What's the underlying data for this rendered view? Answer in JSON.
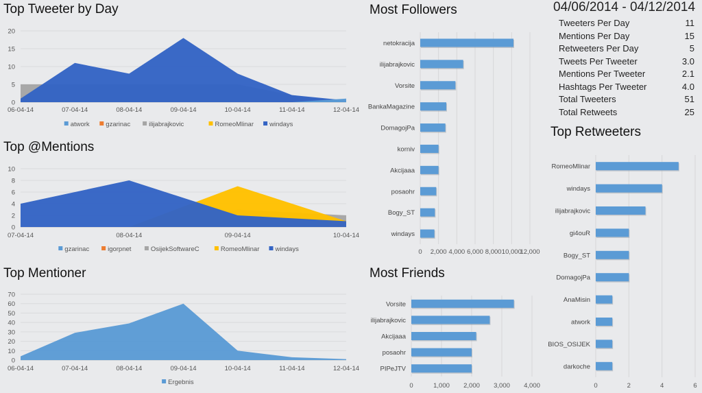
{
  "date_range": "04/06/2014 - 04/12/2014",
  "stats": [
    {
      "label": "Tweeters Per Day",
      "value": "11"
    },
    {
      "label": "Mentions Per Day",
      "value": "15"
    },
    {
      "label": "Retweeters Per Day",
      "value": "5"
    },
    {
      "label": "Tweets Per Tweeter",
      "value": "3.0"
    },
    {
      "label": "Mentions Per Tweeter",
      "value": "2.1"
    },
    {
      "label": "Hashtags Per Tweeter",
      "value": "4.0"
    },
    {
      "label": "Total Tweeters",
      "value": "51"
    },
    {
      "label": "Total Retweets",
      "value": "25"
    }
  ],
  "chart_data": [
    {
      "id": "tweeter",
      "type": "area",
      "title": "Top Tweeter by Day",
      "categories": [
        "06-04-14",
        "07-04-14",
        "08-04-14",
        "09-04-14",
        "10-04-14",
        "11-04-14",
        "12-04-14"
      ],
      "ylim": [
        0,
        20
      ],
      "yticks": [
        0,
        5,
        10,
        15,
        20
      ],
      "grid": true,
      "legend_position": "bottom",
      "series": [
        {
          "name": "atwork",
          "color": "#5b9bd5",
          "values": [
            0,
            0,
            0,
            0,
            0,
            0,
            1
          ]
        },
        {
          "name": "gzarinac",
          "color": "#ed7d31",
          "values": [
            0,
            0,
            0,
            0,
            0,
            0,
            0
          ]
        },
        {
          "name": "ilijabrajkovic",
          "color": "#a5a5a5",
          "values": [
            5,
            5,
            5,
            5,
            5,
            2,
            0
          ]
        },
        {
          "name": "RomeoMlinar",
          "color": "#ffc000",
          "values": [
            0,
            0,
            0,
            0,
            0,
            0,
            0
          ]
        },
        {
          "name": "windays",
          "color": "#3464c4",
          "values": [
            1,
            11,
            8,
            18,
            8,
            2,
            0.5
          ]
        }
      ],
      "draw_order": [
        "ilijabrajkovic",
        "windays",
        "atwork"
      ]
    },
    {
      "id": "mentions",
      "type": "area",
      "title": "Top @Mentions",
      "categories": [
        "07-04-14",
        "08-04-14",
        "09-04-14",
        "10-04-14"
      ],
      "ylim": [
        0,
        10
      ],
      "yticks": [
        0,
        2,
        4,
        6,
        8,
        10
      ],
      "grid": true,
      "legend_position": "bottom",
      "series": [
        {
          "name": "gzarinac",
          "color": "#5b9bd5",
          "values": [
            0,
            0,
            0,
            0
          ]
        },
        {
          "name": "igorpnet",
          "color": "#ed7d31",
          "values": [
            0,
            0,
            0,
            0
          ]
        },
        {
          "name": "OsijekSoftwareC",
          "color": "#a5a5a5",
          "values": [
            0,
            0,
            3,
            2
          ]
        },
        {
          "name": "RomeoMlinar",
          "color": "#ffc000",
          "values": [
            0,
            0,
            7,
            1
          ]
        },
        {
          "name": "windays",
          "color": "#3464c4",
          "values": [
            4,
            8,
            2,
            1
          ]
        }
      ],
      "draw_order": [
        "OsijekSoftwareC",
        "RomeoMlinar",
        "windays"
      ]
    },
    {
      "id": "mentioner",
      "type": "area",
      "title": "Top Mentioner",
      "categories": [
        "06-04-14",
        "07-04-14",
        "08-04-14",
        "09-04-14",
        "10-04-14",
        "11-04-14",
        "12-04-14"
      ],
      "ylim": [
        0,
        70
      ],
      "yticks": [
        0,
        10,
        20,
        30,
        40,
        50,
        60,
        70
      ],
      "grid": true,
      "legend_position": "bottom",
      "series": [
        {
          "name": "Ergebnis",
          "color": "#5b9bd5",
          "values": [
            4,
            29,
            39,
            60,
            10,
            3,
            1
          ]
        }
      ],
      "draw_order": [
        "Ergebnis"
      ]
    },
    {
      "id": "followers",
      "type": "bar",
      "orientation": "horizontal",
      "title": "Most Followers",
      "categories": [
        "netokracija",
        "ilijabrajkovic",
        "Vorsite",
        "BankaMagazine",
        "DomagojPa",
        "korniv",
        "Akcijaaa",
        "posaohr",
        "Bogy_ST",
        "windays"
      ],
      "values": [
        10200,
        4700,
        3850,
        2850,
        2750,
        2000,
        2000,
        1750,
        1600,
        1550
      ],
      "xlim": [
        0,
        12000
      ],
      "xticks": [
        "0",
        "2,000",
        "4,000",
        "6,000",
        "8,000",
        "10,000",
        "12,000"
      ],
      "grid": true,
      "color": "#5b9bd5"
    },
    {
      "id": "friends",
      "type": "bar",
      "orientation": "horizontal",
      "title": "Most Friends",
      "categories": [
        "Vorsite",
        "ilijabrajkovic",
        "Akcijaaa",
        "posaohr",
        "PIPeJTV"
      ],
      "values": [
        3400,
        2600,
        2150,
        2000,
        2000
      ],
      "xlim": [
        0,
        4000
      ],
      "xticks": [
        "0",
        "1,000",
        "2,000",
        "3,000",
        "4,000"
      ],
      "grid": true,
      "color": "#5b9bd5"
    },
    {
      "id": "retweeters",
      "type": "bar",
      "orientation": "horizontal",
      "title": "Top Retweeters",
      "categories": [
        "RomeoMlinar",
        "windays",
        "ilijabrajkovic",
        "gi4ouR",
        "Bogy_ST",
        "DomagojPa",
        "AnaMisin",
        "atwork",
        "BIOS_OSIJEK",
        "darkoche"
      ],
      "values": [
        5,
        4,
        3,
        2,
        2,
        2,
        1,
        1,
        1,
        1
      ],
      "xlim": [
        0,
        6
      ],
      "xticks": [
        "0",
        "2",
        "4",
        "6"
      ],
      "grid": true,
      "color": "#5b9bd5"
    }
  ]
}
